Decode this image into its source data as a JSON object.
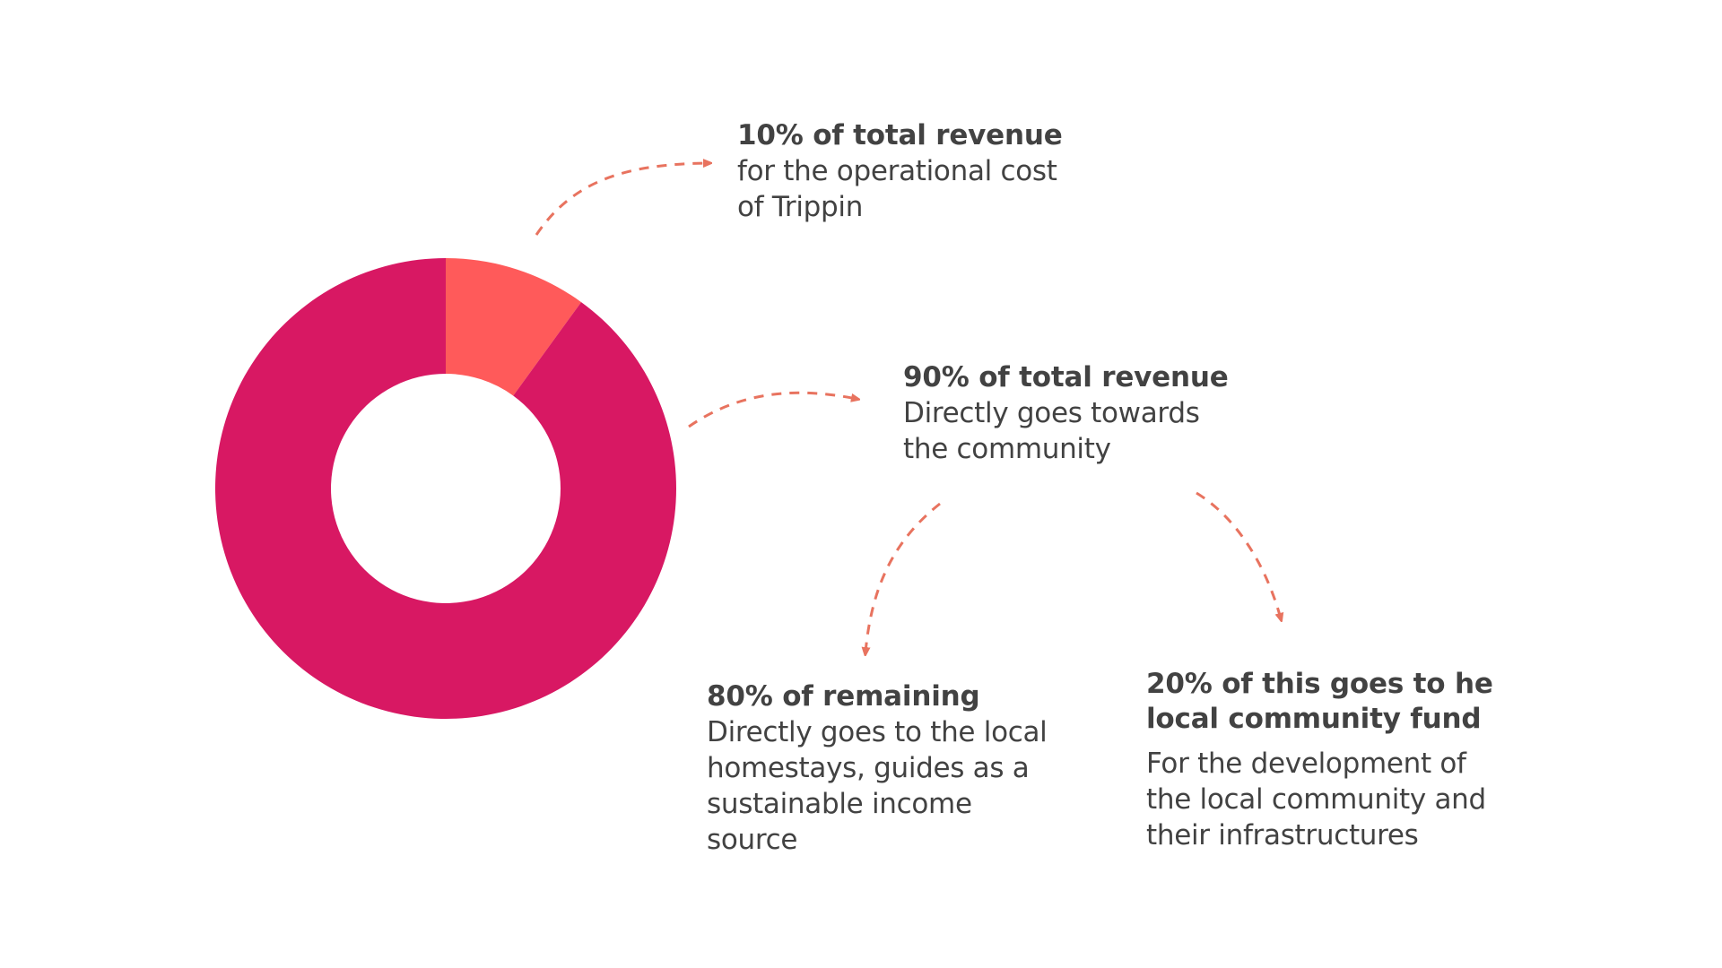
{
  "colors": {
    "operational": "#ff5a5a",
    "community": "#d81863",
    "arrow": "#e8735f",
    "text": "#424242"
  },
  "chart_data": {
    "type": "pie",
    "variant": "donut",
    "title": "",
    "categories": [
      "10% of total revenue",
      "90% of total revenue"
    ],
    "values": [
      10,
      90
    ],
    "colors": [
      "#ff5a5a",
      "#d81863"
    ],
    "legend": "none"
  },
  "callouts": {
    "operational": {
      "head": "10% of total revenue",
      "body_lines": [
        "for the operational cost",
        "of Trippin"
      ]
    },
    "community": {
      "head": "90% of total revenue",
      "body_lines": [
        "Directly goes towards",
        "the community"
      ]
    },
    "local": {
      "head": "80% of remaining",
      "body_lines": [
        "Directly goes to the local",
        "homestays, guides as a",
        "sustainable income",
        "source"
      ]
    },
    "fund": {
      "head_lines": [
        "20% of this goes to he",
        "local community fund"
      ],
      "body_lines": [
        "For the development of",
        "the local community and",
        "their infrastructures"
      ]
    }
  }
}
